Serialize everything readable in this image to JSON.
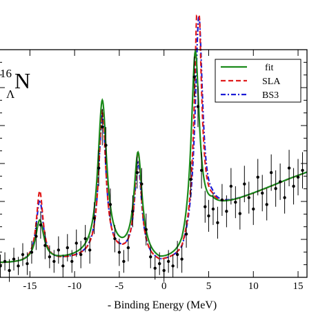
{
  "chart_data": {
    "type": "line",
    "xlabel": "- Binding Energy  (MeV)",
    "ylabel": "",
    "xlim": [
      -18.5,
      16
    ],
    "ylim": [
      0,
      1
    ],
    "x_ticks": [
      -15,
      -10,
      -5,
      0,
      5,
      10,
      15
    ],
    "nucleus_label": {
      "mass": "16",
      "lambda": "Λ",
      "element": "N"
    },
    "legend_position": "top-right",
    "series": [
      {
        "name": "fit",
        "color": "#1a8a1a",
        "dash": "solid"
      },
      {
        "name": "SLA",
        "color": "#e01b1b",
        "dash": "dashed"
      },
      {
        "name": "BS3",
        "color": "#1b1bd6",
        "dash": "dashdot"
      }
    ],
    "peaks": {
      "fit": [
        [
          -13.9,
          0.18,
          0.55
        ],
        [
          -6.9,
          0.68,
          0.6
        ],
        [
          -2.9,
          0.45,
          0.55
        ],
        [
          3.5,
          0.82,
          0.55
        ]
      ],
      "SLA": [
        [
          -13.9,
          0.31,
          0.45
        ],
        [
          -6.9,
          0.64,
          0.48
        ],
        [
          -2.9,
          0.46,
          0.45
        ],
        [
          3.8,
          1.1,
          0.45
        ]
      ],
      "BS3": [
        [
          -13.9,
          0.27,
          0.48
        ],
        [
          -6.9,
          0.62,
          0.5
        ],
        [
          -2.9,
          0.41,
          0.48
        ],
        [
          3.9,
          0.95,
          0.5
        ]
      ]
    },
    "background": {
      "x": [
        -18.5,
        -16,
        -12,
        -9,
        -6,
        -3,
        -0.5,
        2,
        5.4,
        8,
        11,
        14,
        16
      ],
      "y": [
        0.06,
        0.06,
        0.07,
        0.08,
        0.09,
        0.08,
        0.05,
        0.07,
        0.29,
        0.33,
        0.38,
        0.43,
        0.46
      ]
    },
    "data_points": [
      [
        -18.3,
        0.05,
        0.05
      ],
      [
        -17.8,
        0.07,
        0.04
      ],
      [
        -17.3,
        0.03,
        0.05
      ],
      [
        -16.8,
        0.08,
        0.05
      ],
      [
        -16.3,
        0.05,
        0.04
      ],
      [
        -15.8,
        0.1,
        0.05
      ],
      [
        -15.3,
        0.06,
        0.05
      ],
      [
        -14.8,
        0.11,
        0.05
      ],
      [
        -14.3,
        0.18,
        0.06
      ],
      [
        -13.8,
        0.23,
        0.06
      ],
      [
        -13.3,
        0.14,
        0.06
      ],
      [
        -12.8,
        0.09,
        0.05
      ],
      [
        -12.3,
        0.07,
        0.05
      ],
      [
        -11.8,
        0.12,
        0.06
      ],
      [
        -11.3,
        0.05,
        0.05
      ],
      [
        -10.8,
        0.13,
        0.06
      ],
      [
        -10.3,
        0.07,
        0.05
      ],
      [
        -9.8,
        0.15,
        0.06
      ],
      [
        -9.3,
        0.1,
        0.06
      ],
      [
        -8.8,
        0.17,
        0.06
      ],
      [
        -8.3,
        0.12,
        0.06
      ],
      [
        -7.8,
        0.26,
        0.07
      ],
      [
        -7.3,
        0.48,
        0.08
      ],
      [
        -6.9,
        0.66,
        0.08
      ],
      [
        -6.5,
        0.58,
        0.08
      ],
      [
        -6.0,
        0.32,
        0.07
      ],
      [
        -5.5,
        0.17,
        0.06
      ],
      [
        -5.0,
        0.11,
        0.06
      ],
      [
        -4.5,
        0.07,
        0.05
      ],
      [
        -4.0,
        0.13,
        0.06
      ],
      [
        -3.5,
        0.29,
        0.07
      ],
      [
        -3.0,
        0.46,
        0.07
      ],
      [
        -2.5,
        0.41,
        0.07
      ],
      [
        -2.0,
        0.21,
        0.07
      ],
      [
        -1.5,
        0.09,
        0.05
      ],
      [
        -1.0,
        0.04,
        0.05
      ],
      [
        -0.5,
        0.06,
        0.05
      ],
      [
        0.0,
        0.03,
        0.05
      ],
      [
        0.5,
        0.07,
        0.05
      ],
      [
        1.0,
        0.05,
        0.05
      ],
      [
        1.5,
        0.1,
        0.06
      ],
      [
        2.0,
        0.08,
        0.06
      ],
      [
        2.5,
        0.19,
        0.06
      ],
      [
        3.0,
        0.43,
        0.08
      ],
      [
        3.4,
        0.88,
        0.09
      ],
      [
        3.8,
        0.75,
        0.09
      ],
      [
        4.2,
        0.47,
        0.08
      ],
      [
        4.6,
        0.31,
        0.07
      ],
      [
        5.0,
        0.27,
        0.07
      ],
      [
        5.5,
        0.3,
        0.07
      ],
      [
        6.0,
        0.24,
        0.07
      ],
      [
        6.5,
        0.34,
        0.07
      ],
      [
        7.0,
        0.29,
        0.07
      ],
      [
        7.5,
        0.4,
        0.08
      ],
      [
        8.0,
        0.33,
        0.07
      ],
      [
        8.5,
        0.28,
        0.07
      ],
      [
        9.0,
        0.41,
        0.08
      ],
      [
        9.5,
        0.35,
        0.07
      ],
      [
        10.0,
        0.3,
        0.07
      ],
      [
        10.5,
        0.44,
        0.08
      ],
      [
        11.0,
        0.37,
        0.08
      ],
      [
        11.5,
        0.32,
        0.07
      ],
      [
        12.0,
        0.46,
        0.08
      ],
      [
        12.5,
        0.39,
        0.08
      ],
      [
        13.0,
        0.42,
        0.08
      ],
      [
        13.5,
        0.35,
        0.07
      ],
      [
        14.0,
        0.48,
        0.08
      ],
      [
        14.5,
        0.4,
        0.08
      ],
      [
        15.0,
        0.44,
        0.08
      ],
      [
        15.5,
        0.47,
        0.08
      ]
    ]
  }
}
